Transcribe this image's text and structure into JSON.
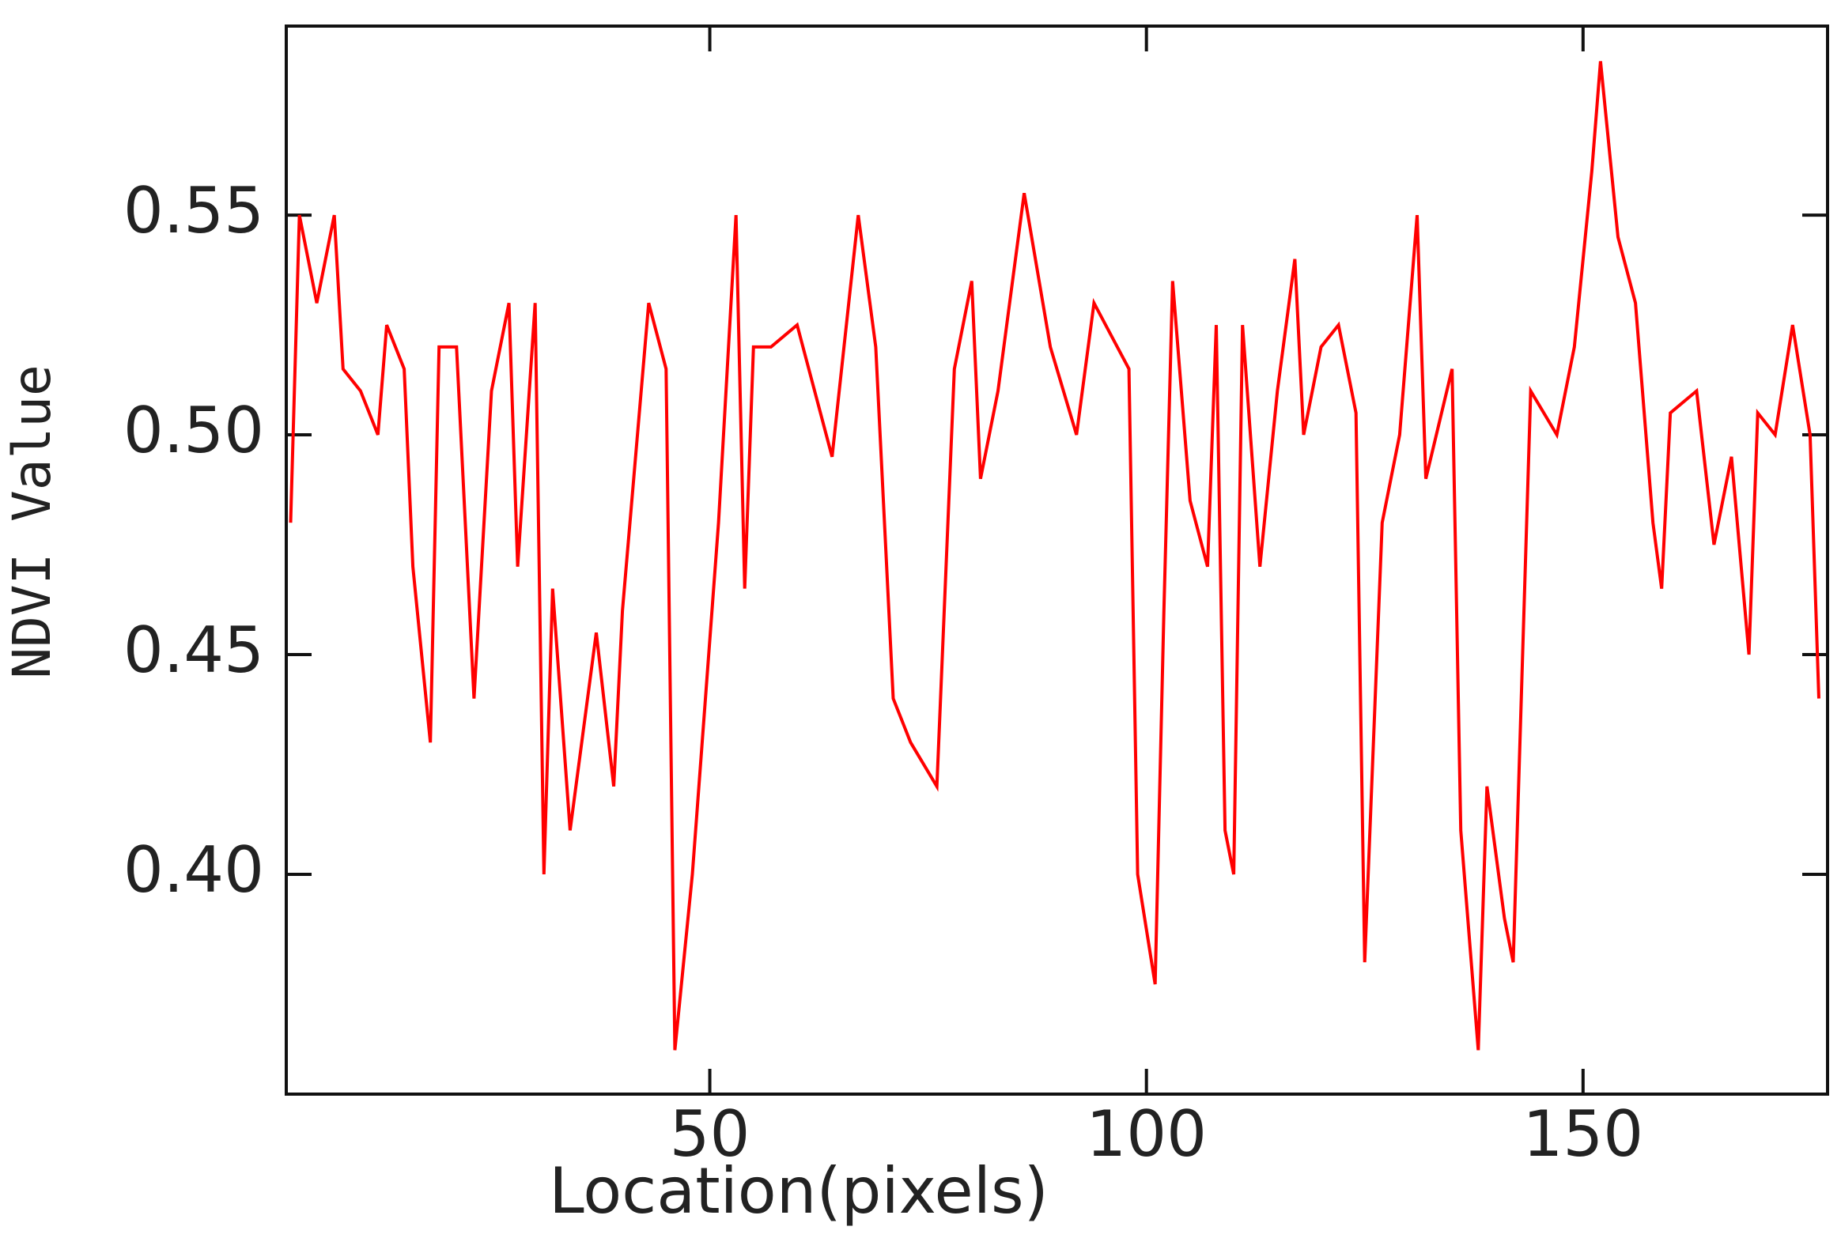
{
  "chart_data": {
    "type": "line",
    "x_label": "Location(pixels)",
    "y_label": "NDVI Value",
    "x": [
      2,
      3,
      5,
      7,
      8,
      10,
      12,
      13,
      15,
      16,
      18,
      19,
      21,
      23,
      25,
      27,
      28,
      30,
      31,
      32,
      34,
      37,
      39,
      40,
      43,
      45,
      46,
      48,
      51,
      53,
      54,
      55,
      57,
      60,
      64,
      67,
      69,
      71,
      73,
      76,
      78,
      80,
      81,
      83,
      86,
      89,
      92,
      94,
      98,
      99,
      101,
      102,
      103,
      105,
      107,
      108,
      109,
      110,
      111,
      113,
      115,
      117,
      118,
      120,
      122,
      124,
      125,
      127,
      129,
      131,
      132,
      135,
      136,
      138,
      139,
      141,
      142,
      144,
      147,
      149,
      151,
      152,
      154,
      156,
      158,
      159,
      160,
      163,
      165,
      167,
      169,
      170,
      172,
      174,
      176,
      177
    ],
    "series": [
      {
        "name": "NDVI",
        "color": "#ff0000",
        "values": [
          0.48,
          0.55,
          0.53,
          0.55,
          0.515,
          0.51,
          0.5,
          0.525,
          0.515,
          0.47,
          0.43,
          0.52,
          0.52,
          0.44,
          0.51,
          0.53,
          0.47,
          0.53,
          0.4,
          0.465,
          0.41,
          0.455,
          0.42,
          0.46,
          0.53,
          0.515,
          0.36,
          0.4,
          0.48,
          0.55,
          0.465,
          0.52,
          0.52,
          0.525,
          0.495,
          0.55,
          0.52,
          0.44,
          0.43,
          0.42,
          0.515,
          0.535,
          0.49,
          0.51,
          0.555,
          0.52,
          0.5,
          0.53,
          0.515,
          0.4,
          0.375,
          0.46,
          0.535,
          0.485,
          0.47,
          0.525,
          0.41,
          0.4,
          0.525,
          0.47,
          0.51,
          0.54,
          0.5,
          0.52,
          0.525,
          0.505,
          0.38,
          0.48,
          0.5,
          0.55,
          0.49,
          0.515,
          0.41,
          0.36,
          0.42,
          0.39,
          0.38,
          0.51,
          0.5,
          0.52,
          0.56,
          0.585,
          0.545,
          0.53,
          0.48,
          0.465,
          0.505,
          0.51,
          0.475,
          0.495,
          0.45,
          0.505,
          0.5,
          0.525,
          0.5,
          0.44
        ]
      }
    ],
    "xlim": [
      1.5,
      178
    ],
    "ylim": [
      0.35,
      0.593
    ],
    "xticks": [
      50,
      100,
      150
    ],
    "yticks": [
      {
        "value": 0.4,
        "label": "0.40"
      },
      0.45,
      {
        "value": 0.5,
        "label": "0.50"
      },
      0.55
    ]
  }
}
